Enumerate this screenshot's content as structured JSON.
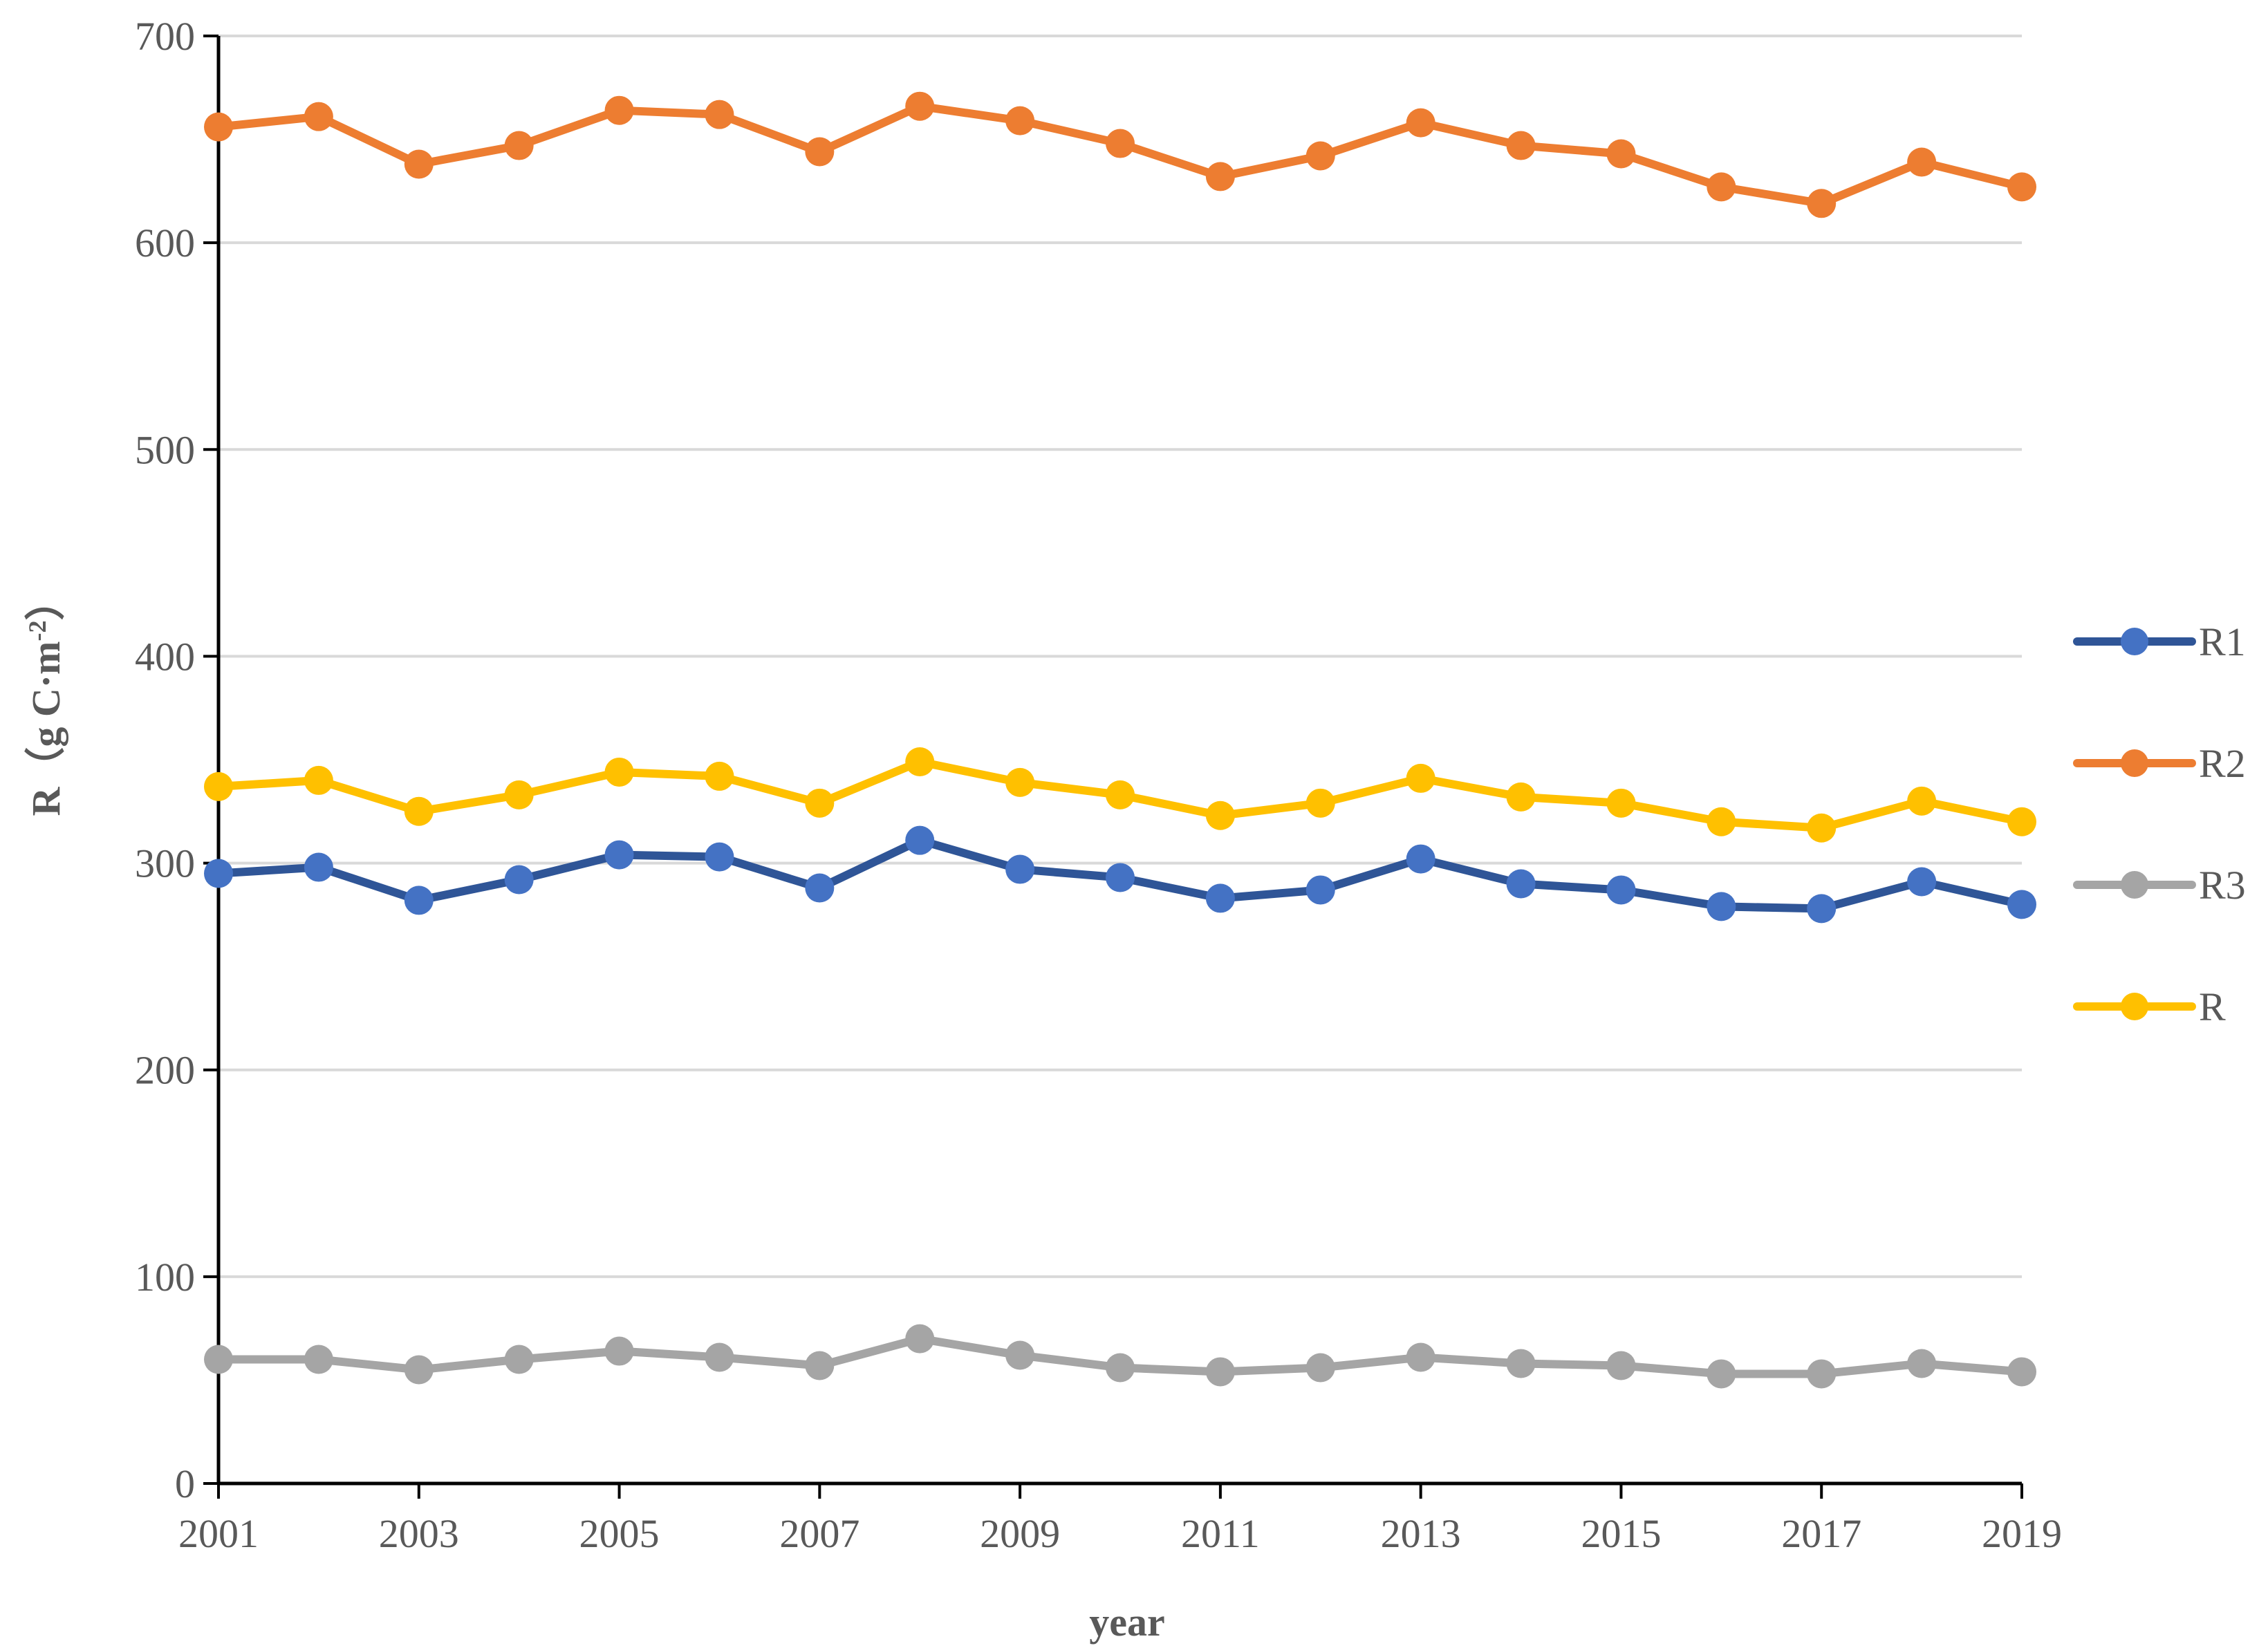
{
  "chart_data": {
    "type": "line",
    "title": "",
    "xlabel": "year",
    "ylabel_main": "R",
    "ylabel_unit": "（g C·m",
    "ylabel_sup": "-2",
    "ylabel_close": "）",
    "ylim": [
      0,
      700
    ],
    "yticks": [
      0,
      100,
      200,
      300,
      400,
      500,
      600,
      700
    ],
    "x": [
      2001,
      2002,
      2003,
      2004,
      2005,
      2006,
      2007,
      2008,
      2009,
      2010,
      2011,
      2012,
      2013,
      2014,
      2015,
      2016,
      2017,
      2018,
      2019
    ],
    "xtick_labels": [
      "2001",
      "2003",
      "2005",
      "2007",
      "2009",
      "2011",
      "2013",
      "2015",
      "2017",
      "2019"
    ],
    "grid": true,
    "legend_position": "right",
    "series": [
      {
        "name": "R1",
        "color": "#2f5597",
        "marker_color": "#4472c4",
        "values": [
          295,
          298,
          282,
          292,
          304,
          303,
          288,
          311,
          297,
          293,
          283,
          287,
          302,
          290,
          287,
          279,
          278,
          291,
          280
        ]
      },
      {
        "name": "R2",
        "color": "#ed7d31",
        "marker_color": "#ed7d31",
        "values": [
          656,
          661,
          638,
          647,
          664,
          662,
          644,
          666,
          659,
          648,
          632,
          642,
          658,
          647,
          643,
          627,
          619,
          639,
          627
        ]
      },
      {
        "name": "R3",
        "color": "#a5a5a5",
        "marker_color": "#a5a5a5",
        "values": [
          60,
          60,
          55,
          60,
          64,
          61,
          57,
          70,
          62,
          56,
          54,
          56,
          61,
          58,
          57,
          53,
          53,
          58,
          54
        ]
      },
      {
        "name": "R",
        "color": "#ffc000",
        "marker_color": "#ffc000",
        "values": [
          337,
          340,
          325,
          333,
          344,
          342,
          329,
          349,
          339,
          333,
          323,
          329,
          341,
          332,
          329,
          320,
          317,
          330,
          320
        ]
      }
    ]
  }
}
